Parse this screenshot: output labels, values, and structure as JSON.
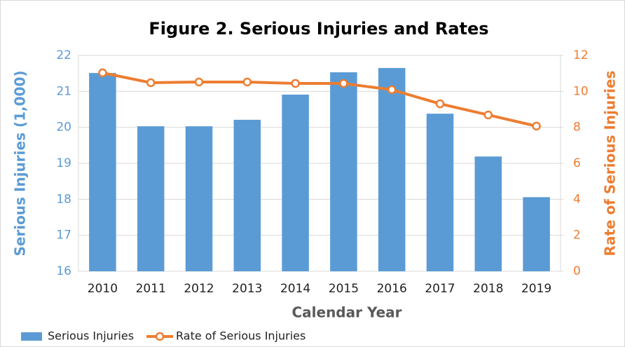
{
  "chart_data": {
    "type": "bar_line",
    "title": "Figure 2. Serious Injuries and Rates",
    "x_label": "Calendar Year",
    "y_label": "Serious Injuries (1,000)",
    "y2_label": "Rate of Serious Injuries",
    "categories": [
      "2010",
      "2011",
      "2012",
      "2013",
      "2014",
      "2015",
      "2016",
      "2017",
      "2018",
      "2019"
    ],
    "series": [
      {
        "name": "Serious Injuries",
        "type": "bar",
        "color": "#5b9bd5",
        "values": [
          21.51,
          20.03,
          20.03,
          20.21,
          20.91,
          21.53,
          21.65,
          20.38,
          19.19,
          18.06
        ]
      },
      {
        "name": "Rate of Serious Injuries",
        "type": "line",
        "axis": "y2",
        "color": "#ed7d31",
        "values": [
          11.03,
          10.48,
          10.52,
          10.52,
          10.44,
          10.44,
          10.09,
          9.31,
          8.69,
          8.07
        ]
      }
    ],
    "ylim": [
      16,
      22
    ],
    "yticks": [
      16,
      17,
      18,
      19,
      20,
      21,
      22
    ],
    "y2lim": [
      0,
      12
    ],
    "y2ticks": [
      0,
      2,
      4,
      6,
      8,
      10,
      12
    ],
    "grid": true,
    "legend": "bottom-left"
  }
}
